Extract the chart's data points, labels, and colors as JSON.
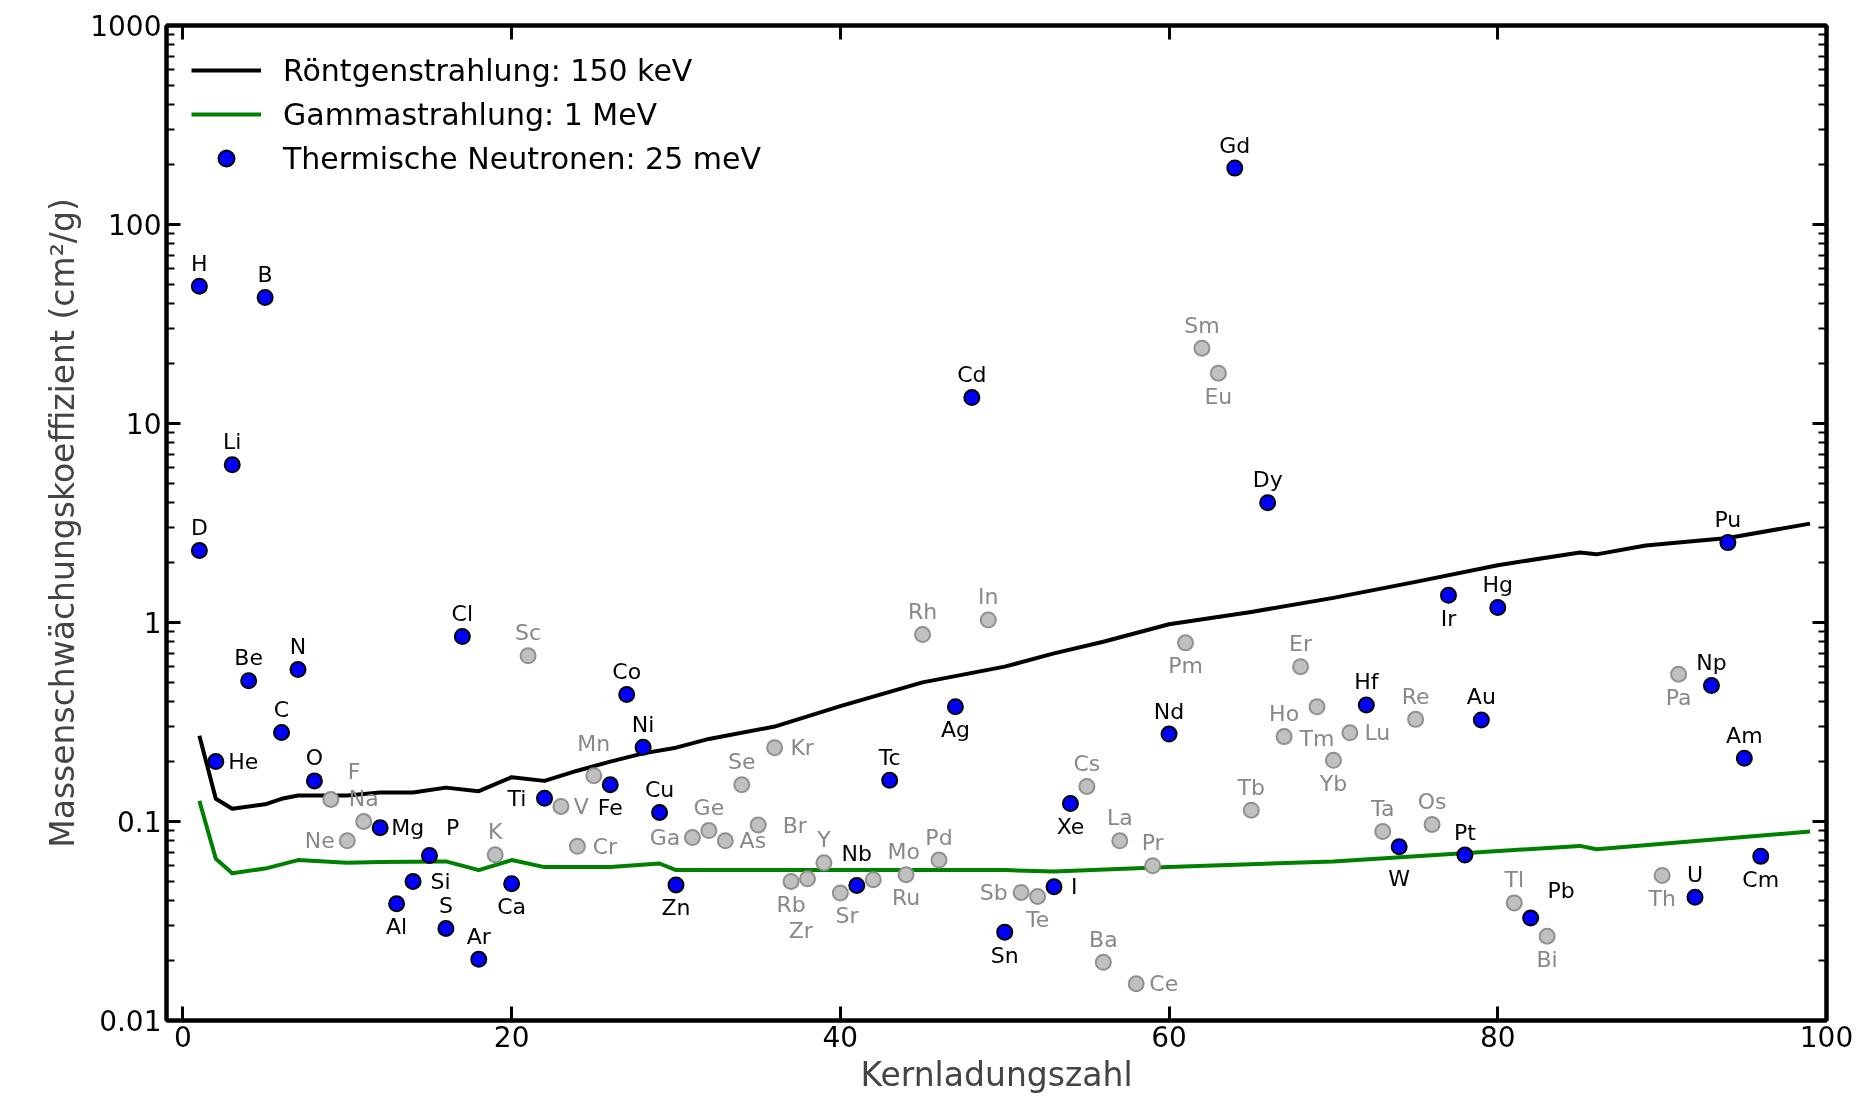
{
  "chart_data": {
    "type": "line",
    "xlabel": "Kernladungszahl",
    "ylabel": "Massenschwächungskoeffizient (cm²/g)",
    "xlim": [
      -1,
      100
    ],
    "xticks": [
      0,
      20,
      40,
      60,
      80,
      100
    ],
    "ylim": [
      0.01,
      1000
    ],
    "yticks": [
      0.01,
      0.1,
      1,
      10,
      100,
      1000
    ],
    "log": "y",
    "grid": false,
    "legend": "top left",
    "series": [
      {
        "name": "Röntgenstrahlung: 150 keV",
        "color": "#000000",
        "x": [
          1,
          2,
          3,
          5,
          6,
          7,
          10,
          12,
          14,
          16,
          18,
          20,
          22,
          24,
          26,
          28,
          30,
          32,
          36,
          40,
          45,
          50,
          53,
          56,
          60,
          65,
          70,
          75,
          80,
          85,
          86,
          89,
          94,
          99
        ],
        "values": [
          0.27,
          0.13,
          0.116,
          0.122,
          0.13,
          0.135,
          0.135,
          0.14,
          0.14,
          0.148,
          0.142,
          0.167,
          0.16,
          0.18,
          0.2,
          0.22,
          0.235,
          0.26,
          0.3,
          0.38,
          0.5,
          0.6,
          0.7,
          0.8,
          0.98,
          1.13,
          1.33,
          1.6,
          1.94,
          2.25,
          2.2,
          2.44,
          2.66,
          3.14
        ]
      },
      {
        "name": "Gammastrahlung: 1 MeV",
        "color": "#008000",
        "x": [
          1,
          2,
          3,
          5,
          7,
          10,
          12,
          16,
          18,
          20,
          22,
          26,
          29,
          30,
          40,
          50,
          53,
          60,
          70,
          85,
          86,
          99
        ],
        "values": [
          0.127,
          0.065,
          0.055,
          0.058,
          0.064,
          0.062,
          0.0625,
          0.063,
          0.057,
          0.064,
          0.059,
          0.059,
          0.0615,
          0.057,
          0.057,
          0.057,
          0.056,
          0.059,
          0.063,
          0.0754,
          0.0726,
          0.089
        ]
      },
      {
        "type": "scatter",
        "color": "#c0c0c0",
        "marker": "circle",
        "x": [
          9,
          10,
          11,
          19,
          21,
          23,
          24,
          25,
          31,
          32,
          33,
          34,
          35,
          36,
          37,
          38,
          39,
          40,
          42,
          44,
          45,
          46,
          49,
          51,
          52,
          55,
          56,
          57,
          58,
          59,
          61,
          62,
          63,
          65,
          67,
          68,
          69,
          70,
          71,
          73,
          75,
          76,
          81,
          83,
          90,
          91
        ],
        "values": [
          0.129,
          0.08,
          0.1,
          0.068,
          0.68,
          0.119,
          0.075,
          0.17,
          0.083,
          0.09,
          0.08,
          0.153,
          0.096,
          0.235,
          0.05,
          0.0515,
          0.062,
          0.0437,
          0.051,
          0.054,
          0.87,
          0.064,
          1.03,
          0.044,
          0.042,
          0.15,
          0.0196,
          0.08,
          0.0153,
          0.06,
          0.79,
          23.9,
          17.9,
          0.114,
          0.267,
          0.6,
          0.377,
          0.203,
          0.279,
          0.089,
          0.326,
          0.0966,
          0.039,
          0.0265,
          0.0536,
          0.55
        ],
        "value_labels": [
          "F",
          "Ne",
          "Na",
          "K",
          "Sc",
          "V",
          "Cr",
          "Mn",
          "Ga",
          "Ge",
          "As",
          "Se",
          "Br",
          "Kr",
          "Rb",
          "Sr",
          "Y",
          "Zr",
          "Mo",
          "Ru",
          "Rh",
          "Pd",
          "In",
          "Sb",
          "Te",
          "Cs",
          "Ba",
          "La",
          "Ce",
          "Pr",
          "Pm",
          "Sm",
          "Eu",
          "Tb",
          "Ho",
          "Er",
          "Tm",
          "Yb",
          "Lu",
          "Ta",
          "Re",
          "Os",
          "Tl",
          "Bi",
          "Th",
          "Pa"
        ]
      },
      {
        "type": "scatter",
        "name": "Thermische Neutronen: 25 meV",
        "color": "#0000ff",
        "marker": "circle",
        "x": [
          1,
          1,
          2,
          3,
          4,
          5,
          6,
          7,
          8,
          12,
          13,
          14,
          15,
          16,
          17,
          18,
          20,
          22,
          26,
          27,
          28,
          29,
          30,
          41,
          43,
          47,
          48,
          50,
          53,
          54,
          60,
          64,
          66,
          72,
          74,
          77,
          78,
          79,
          80,
          82,
          92,
          93,
          94,
          95,
          96
        ],
        "values": [
          49,
          2.3,
          0.2,
          6.2,
          0.51,
          43,
          0.28,
          0.58,
          0.16,
          0.093,
          0.0386,
          0.05,
          0.0675,
          0.029,
          0.85,
          0.0203,
          0.0487,
          0.131,
          0.153,
          0.435,
          0.236,
          0.111,
          0.048,
          0.0477,
          0.161,
          0.377,
          13.5,
          0.0278,
          0.047,
          0.123,
          0.275,
          192,
          4.0,
          0.385,
          0.0746,
          1.37,
          0.0678,
          0.324,
          1.19,
          0.0327,
          0.0416,
          0.482,
          2.52,
          0.208,
          0.0668
        ],
        "value_labels": [
          "H",
          "D",
          "He",
          "Li",
          "Be",
          "B",
          "C",
          "N",
          "O",
          "Mg",
          "Al",
          "Si",
          "P",
          "S",
          "Cl",
          "Ar",
          "Ca",
          "Ti",
          "Fe",
          "Co",
          "Ni",
          "Cu",
          "Zn",
          "Nb",
          "Tc",
          "Ag",
          "Cd",
          "Sn",
          "I",
          "Xe",
          "Nd",
          "Gd",
          "Dy",
          "Hf",
          "W",
          "Ir",
          "Pt",
          "Au",
          "Hg",
          "Pb",
          "U",
          "Np",
          "Pu",
          "Am",
          "Cm"
        ]
      }
    ]
  }
}
